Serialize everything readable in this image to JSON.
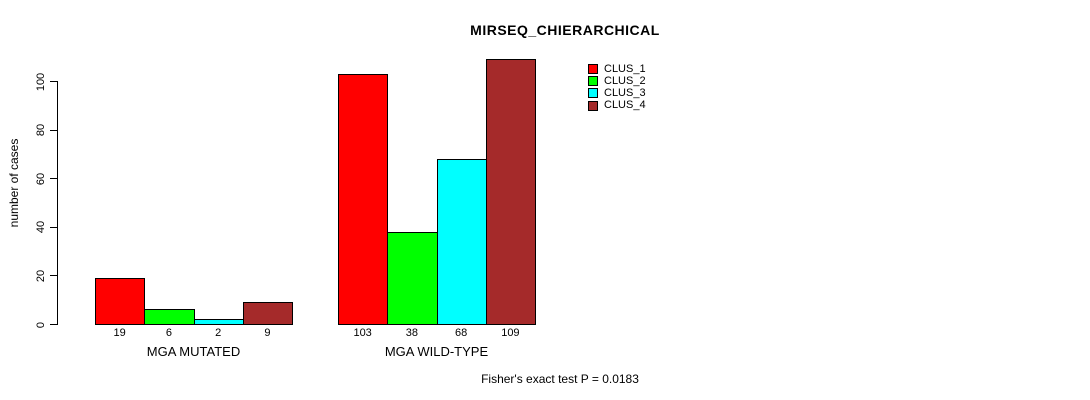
{
  "chart_data": {
    "type": "bar",
    "title": "MIRSEQ_CHIERARCHICAL",
    "xlabel": "",
    "ylabel": "number of cases",
    "ylim": [
      0,
      100
    ],
    "yticks": [
      0,
      20,
      40,
      60,
      80,
      100
    ],
    "grid": false,
    "legend_position": "top-right-outside",
    "categories": [
      "MGA MUTATED",
      "MGA WILD-TYPE"
    ],
    "series": [
      {
        "name": "CLUS_1",
        "color": "#FF0000",
        "values": [
          19,
          103
        ]
      },
      {
        "name": "CLUS_2",
        "color": "#00FF00",
        "values": [
          6,
          38
        ]
      },
      {
        "name": "CLUS_3",
        "color": "#00FFFF",
        "values": [
          2,
          68
        ]
      },
      {
        "name": "CLUS_4",
        "color": "#A52A2A",
        "values": [
          9,
          109
        ]
      }
    ],
    "bar_value_labels_shown": true,
    "annotation": "Fisher's exact test P = 0.0183"
  },
  "colors": {
    "background": "#FFFFFF",
    "axis": "#000000",
    "text": "#000000",
    "bar_border": "#000000"
  }
}
